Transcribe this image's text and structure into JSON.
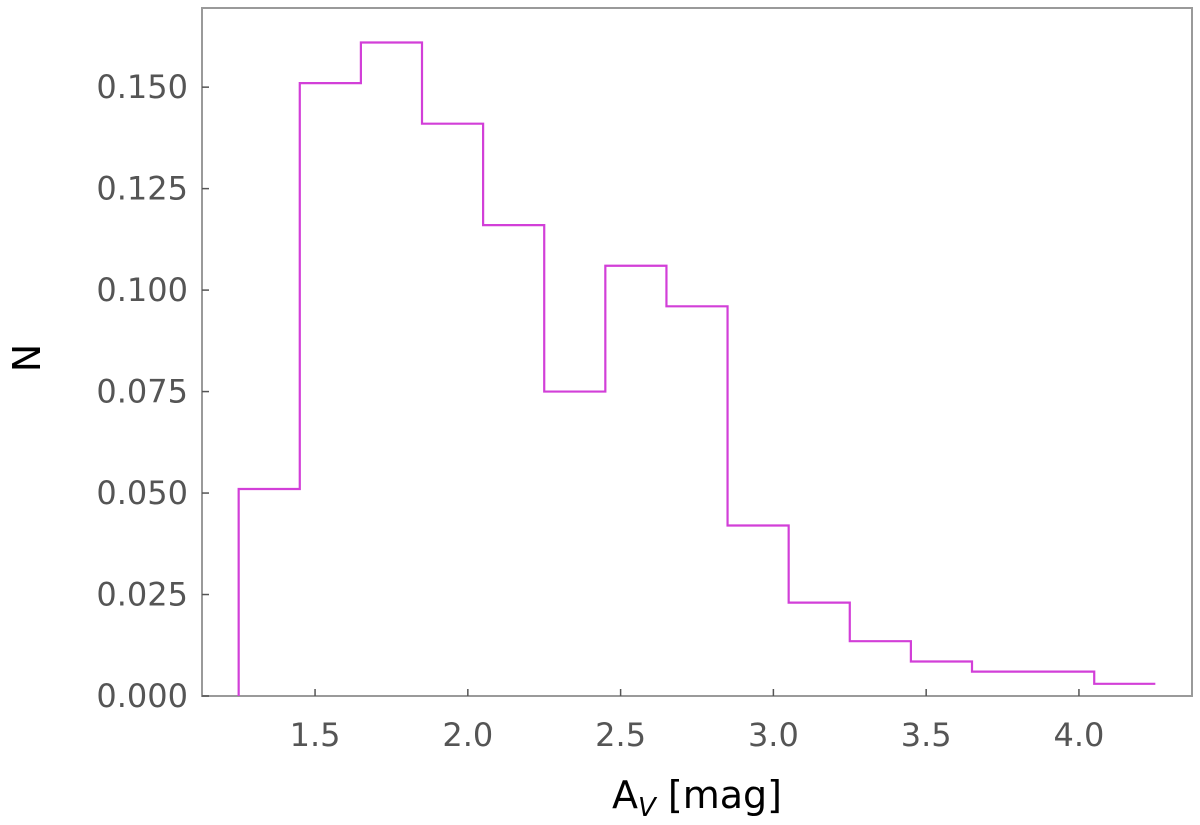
{
  "chart_data": {
    "type": "histogram",
    "title": "",
    "xlabel": {
      "main": "A",
      "sub": "V",
      "unit": " [mag]"
    },
    "ylabel": "N",
    "bin_edges": [
      1.25,
      1.45,
      1.65,
      1.85,
      2.05,
      2.25,
      2.45,
      2.65,
      2.85,
      3.05,
      3.25,
      3.45,
      3.65,
      3.85,
      4.05,
      4.25
    ],
    "values": [
      0.051,
      0.151,
      0.161,
      0.141,
      0.116,
      0.075,
      0.106,
      0.096,
      0.042,
      0.023,
      0.0135,
      0.0085,
      0.006,
      0.006,
      0.003
    ],
    "xlim": [
      1.13,
      4.37
    ],
    "ylim": [
      0.0,
      0.1695
    ],
    "xticks": [
      1.5,
      2.0,
      2.5,
      3.0,
      3.5,
      4.0
    ],
    "xtick_labels": [
      "1.5",
      "2.0",
      "2.5",
      "3.0",
      "3.5",
      "4.0"
    ],
    "yticks": [
      0.0,
      0.025,
      0.05,
      0.075,
      0.1,
      0.125,
      0.15
    ],
    "ytick_labels": [
      "0.000",
      "0.025",
      "0.050",
      "0.075",
      "0.100",
      "0.125",
      "0.150"
    ],
    "grid": false,
    "colors": {
      "line": "#d23fd8",
      "frame": "#9a9a9a",
      "ticks": "#555555"
    }
  }
}
